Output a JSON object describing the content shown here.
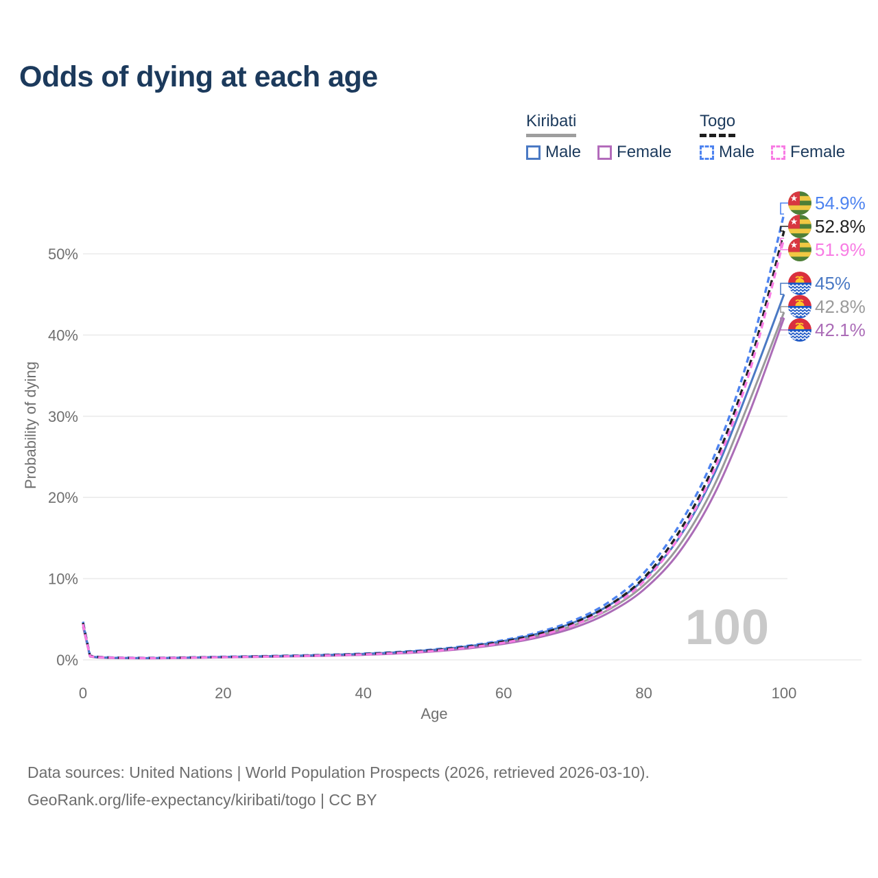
{
  "page": {
    "title": "Odds of dying at each age"
  },
  "legend": {
    "groups": [
      {
        "country": "Kiribati",
        "line_style": "solid",
        "underline_color": "#9e9e9e",
        "items": [
          {
            "label": "Male",
            "color": "#4a79c4"
          },
          {
            "label": "Female",
            "color": "#b36bbb"
          }
        ]
      },
      {
        "country": "Togo",
        "line_style": "dashed",
        "underline_color": "#1e1e1e",
        "items": [
          {
            "label": "Male",
            "color": "#4d83f0"
          },
          {
            "label": "Female",
            "color": "#f87ce4"
          }
        ]
      }
    ]
  },
  "watermark_age": "100",
  "chart_data": {
    "type": "line",
    "title": "Odds of dying at each age",
    "xlabel": "Age",
    "ylabel": "Probability of dying",
    "x_ticks": [
      0,
      20,
      40,
      60,
      80,
      100
    ],
    "y_ticks": [
      {
        "label": "0%",
        "value": 0
      },
      {
        "label": "10%",
        "value": 10
      },
      {
        "label": "20%",
        "value": 20
      },
      {
        "label": "30%",
        "value": 30
      },
      {
        "label": "40%",
        "value": 40
      },
      {
        "label": "50%",
        "value": 50
      }
    ],
    "xlim": [
      0,
      100
    ],
    "ylim": [
      0,
      57
    ],
    "grid": "horizontal",
    "legend_position": "top-right",
    "unit": "percent",
    "ages": [
      0,
      1,
      2,
      5,
      10,
      15,
      20,
      25,
      30,
      35,
      40,
      45,
      50,
      55,
      60,
      65,
      70,
      75,
      80,
      85,
      90,
      95,
      100
    ],
    "series": [
      {
        "name": "Togo Male",
        "country": "Togo",
        "sex": "Male",
        "color": "#4d83f0",
        "dash": "dashed",
        "end_label": "54.9%",
        "values": [
          4.7,
          0.52,
          0.38,
          0.28,
          0.25,
          0.3,
          0.38,
          0.45,
          0.53,
          0.63,
          0.77,
          0.98,
          1.28,
          1.75,
          2.42,
          3.4,
          4.85,
          7.1,
          10.7,
          16.5,
          25.0,
          37.5,
          54.9
        ]
      },
      {
        "name": "Togo Both sexes",
        "country": "Togo",
        "sex": "Both sexes",
        "color": "#212121",
        "dash": "dashed",
        "end_label": "52.8%",
        "values": [
          4.55,
          0.49,
          0.36,
          0.26,
          0.23,
          0.28,
          0.35,
          0.42,
          0.49,
          0.59,
          0.72,
          0.91,
          1.19,
          1.63,
          2.26,
          3.18,
          4.55,
          6.7,
          10.1,
          15.7,
          24.0,
          36.0,
          52.8
        ]
      },
      {
        "name": "Togo Female",
        "country": "Togo",
        "sex": "Female",
        "color": "#f87ce4",
        "dash": "dashed",
        "end_label": "51.9%",
        "values": [
          4.4,
          0.46,
          0.34,
          0.25,
          0.22,
          0.26,
          0.33,
          0.39,
          0.46,
          0.55,
          0.67,
          0.85,
          1.11,
          1.52,
          2.11,
          2.97,
          4.28,
          6.35,
          9.65,
          15.1,
          23.3,
          35.2,
          51.9
        ]
      },
      {
        "name": "Kiribati Male",
        "country": "Kiribati",
        "sex": "Male",
        "color": "#4a79c4",
        "dash": "solid",
        "end_label": "45%",
        "values": [
          4.5,
          0.45,
          0.33,
          0.25,
          0.23,
          0.29,
          0.37,
          0.44,
          0.51,
          0.61,
          0.74,
          0.94,
          1.23,
          1.68,
          2.32,
          3.25,
          4.6,
          6.7,
          9.9,
          15.0,
          22.8,
          33.5,
          45.0
        ]
      },
      {
        "name": "Kiribati Both sexes",
        "country": "Kiribati",
        "sex": "Both sexes",
        "color": "#9a9a9a",
        "dash": "solid",
        "end_label": "42.8%",
        "values": [
          4.3,
          0.42,
          0.31,
          0.23,
          0.21,
          0.26,
          0.33,
          0.4,
          0.47,
          0.56,
          0.68,
          0.86,
          1.13,
          1.54,
          2.13,
          2.99,
          4.25,
          6.2,
          9.2,
          14.0,
          21.4,
          31.7,
          42.8
        ]
      },
      {
        "name": "Kiribati Female",
        "country": "Kiribati",
        "sex": "Female",
        "color": "#ab6cb7",
        "dash": "solid",
        "end_label": "42.1%",
        "values": [
          4.1,
          0.4,
          0.29,
          0.21,
          0.19,
          0.24,
          0.3,
          0.36,
          0.43,
          0.51,
          0.62,
          0.79,
          1.04,
          1.42,
          1.97,
          2.77,
          3.95,
          5.8,
          8.65,
          13.2,
          20.3,
          30.3,
          42.1
        ]
      }
    ]
  },
  "footer": {
    "line1": "Data sources: United Nations | World Population Prospects (2026, retrieved 2026-03-10).",
    "line2": "GeoRank.org/life-expectancy/kiribati/togo | CC BY"
  }
}
